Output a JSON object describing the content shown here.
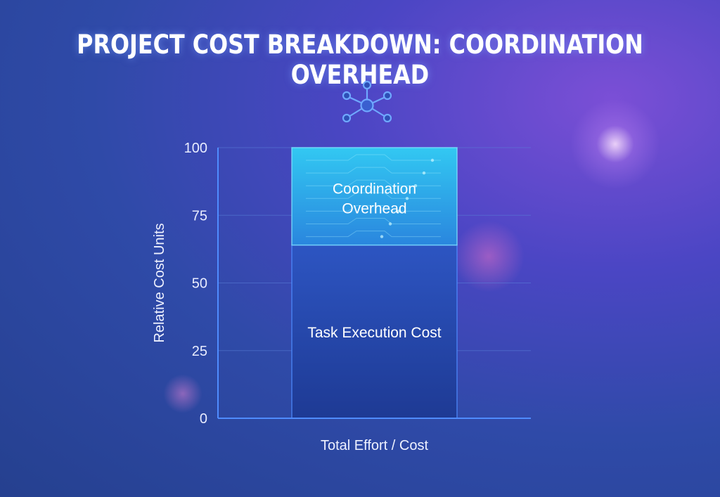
{
  "chart_data": {
    "type": "bar",
    "stacked": true,
    "title": "PROJECT COST BREAKDOWN: COORDINATION OVERHEAD",
    "xlabel": "Total Effort / Cost",
    "ylabel": "Relative Cost Units",
    "ylim": [
      0,
      100
    ],
    "yticks": [
      0,
      25,
      50,
      75,
      100
    ],
    "grid": true,
    "series": [
      {
        "name": "Task Execution Cost",
        "values": [
          64
        ],
        "color": "#2b4bb0"
      },
      {
        "name": "Coordination Overhead",
        "values": [
          36
        ],
        "color": "#2bb3e8"
      }
    ],
    "segment_labels": {
      "task": "Task Execution Cost",
      "overhead_line1": "Coordination",
      "overhead_line2": "Overhead"
    }
  },
  "icons": {
    "header": "network-node-icon"
  },
  "colors": {
    "axis": "#4f8cff",
    "grid": "#5a7fd8",
    "accent": "#3fd0ff"
  }
}
